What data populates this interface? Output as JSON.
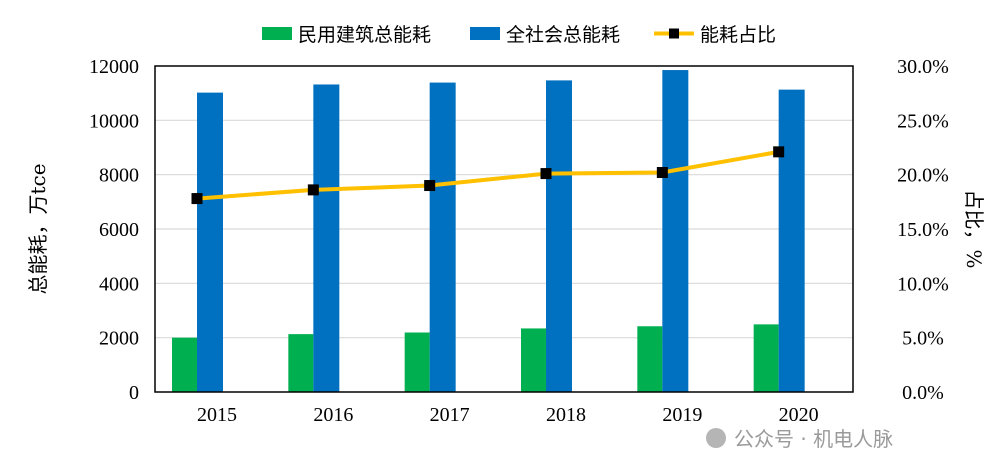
{
  "chart_data": {
    "type": "bar+line",
    "categories": [
      "2015",
      "2016",
      "2017",
      "2018",
      "2019",
      "2020"
    ],
    "series": [
      {
        "name": "民用建筑总能耗",
        "type": "bar",
        "axis": "left",
        "color": "#00B050",
        "values": [
          2000,
          2130,
          2190,
          2340,
          2420,
          2490
        ]
      },
      {
        "name": "全社会总能耗",
        "type": "bar",
        "axis": "left",
        "color": "#0070C0",
        "values": [
          11020,
          11320,
          11390,
          11470,
          11850,
          11130
        ]
      },
      {
        "name": "能耗占比",
        "type": "line",
        "axis": "right",
        "color": "#FFC000",
        "marker_color": "#000000",
        "values": [
          17.8,
          18.6,
          19.0,
          20.1,
          20.2,
          22.1
        ]
      }
    ],
    "ylabel": "总能耗，万tce",
    "y2label": "占比，%",
    "ylim": [
      0,
      12000
    ],
    "y2lim": [
      0,
      30
    ],
    "yticks": [
      "0",
      "2000",
      "4000",
      "6000",
      "8000",
      "10000",
      "12000"
    ],
    "y2ticks": [
      "0.0%",
      "5.0%",
      "10.0%",
      "15.0%",
      "20.0%",
      "25.0%",
      "30.0%"
    ],
    "grid": true,
    "legend": "top"
  },
  "watermark": "公众号 · 机电人脉"
}
